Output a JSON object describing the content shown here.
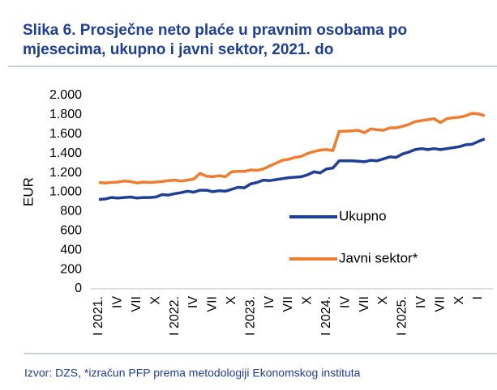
{
  "chart_data": {
    "type": "line",
    "title": "Slika 6. Prosječne neto plaće u pravnim osobama po mjesecima, ukupno i javni sektor, 2021. do",
    "source": "Izvor: DZS, *izračun PFP prema metodologiji Ekonomskog instituta",
    "ylabel": "EUR",
    "categories": [
      "I 2021.",
      null,
      null,
      "IV",
      null,
      null,
      "VII",
      null,
      null,
      "X",
      null,
      null,
      "I 2022.",
      null,
      null,
      "IV",
      null,
      null,
      "VII",
      null,
      null,
      "X",
      null,
      null,
      "I 2023.",
      null,
      null,
      "IV",
      null,
      null,
      "VII",
      null,
      null,
      "X",
      null,
      null,
      "I 2024.",
      null,
      null,
      "IV",
      null,
      null,
      "VII",
      null,
      null,
      "X",
      null,
      null,
      "I 2025.",
      null,
      null,
      "IV",
      null,
      null,
      "VII",
      null,
      null,
      "X",
      null,
      null,
      "I",
      null
    ],
    "series": [
      {
        "name": "Ukupno",
        "color": "#1f3f94",
        "values": [
          925,
          930,
          945,
          940,
          945,
          950,
          940,
          945,
          945,
          950,
          975,
          970,
          985,
          995,
          1010,
          1000,
          1020,
          1020,
          1005,
          1015,
          1010,
          1030,
          1050,
          1045,
          1085,
          1100,
          1125,
          1120,
          1130,
          1140,
          1150,
          1155,
          1160,
          1180,
          1210,
          1200,
          1240,
          1250,
          1325,
          1325,
          1325,
          1320,
          1315,
          1330,
          1325,
          1345,
          1365,
          1360,
          1395,
          1415,
          1440,
          1450,
          1440,
          1450,
          1440,
          1450,
          1460,
          1470,
          1490,
          1495,
          1525,
          1550
        ]
      },
      {
        "name": "Javni sektor*",
        "color": "#ee7d31",
        "values": [
          1100,
          1095,
          1100,
          1105,
          1115,
          1110,
          1095,
          1105,
          1100,
          1105,
          1110,
          1120,
          1125,
          1115,
          1125,
          1135,
          1195,
          1165,
          1160,
          1170,
          1160,
          1210,
          1215,
          1215,
          1230,
          1225,
          1240,
          1270,
          1300,
          1330,
          1340,
          1360,
          1370,
          1400,
          1420,
          1435,
          1440,
          1430,
          1630,
          1630,
          1635,
          1640,
          1615,
          1655,
          1645,
          1640,
          1665,
          1665,
          1680,
          1700,
          1730,
          1740,
          1750,
          1760,
          1720,
          1760,
          1770,
          1775,
          1790,
          1815,
          1810,
          1790
        ]
      }
    ],
    "ylim": [
      0,
      2000
    ],
    "yticks": [
      0,
      {
        "value": 200,
        "label": "200"
      },
      {
        "value": 400,
        "label": "400"
      },
      {
        "value": 600,
        "label": "600"
      },
      {
        "value": 800,
        "label": "800"
      },
      {
        "value": 1000,
        "label": "1.000"
      },
      {
        "value": 1200,
        "label": "1.200"
      },
      {
        "value": 1400,
        "label": "1.400"
      },
      {
        "value": 1600,
        "label": "1.600"
      },
      {
        "value": 1800,
        "label": "1.800"
      },
      {
        "value": 2000,
        "label": "2.000"
      }
    ],
    "grid": false
  }
}
